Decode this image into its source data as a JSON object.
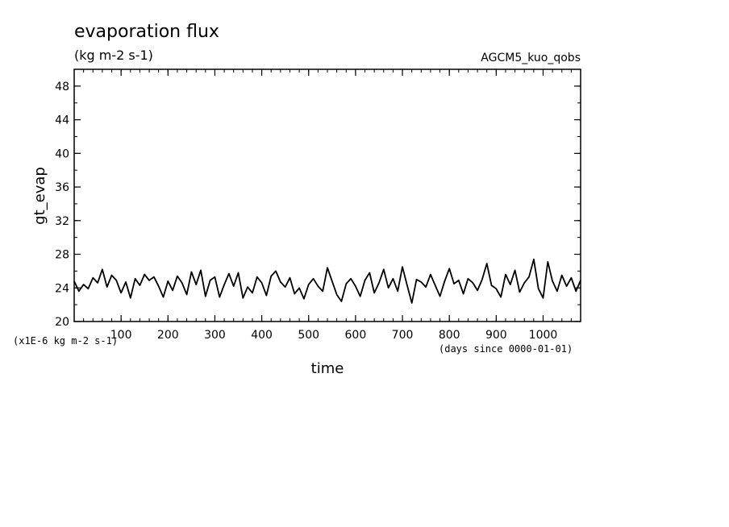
{
  "chart_data": {
    "type": "line",
    "title": "evaporation flux",
    "subtitle": "(kg m-2 s-1)",
    "dataset_label": "AGCM5_kuo_qobs",
    "xlabel": "time",
    "x_unit_note": "(days since 0000-01-01)",
    "ylabel": "gt_evap",
    "y_unit_note": "(x1E-6 kg m-2 s-1)",
    "xlim": [
      0,
      1080
    ],
    "ylim": [
      20,
      50
    ],
    "xticks": [
      100,
      200,
      300,
      400,
      500,
      600,
      700,
      800,
      900,
      1000
    ],
    "yticks": [
      20,
      24,
      28,
      32,
      36,
      40,
      44,
      48
    ],
    "grid": false,
    "line_color": "#000000",
    "series": [
      {
        "x": [
          0,
          10,
          20,
          30,
          40,
          50,
          60,
          70,
          80,
          90,
          100,
          110,
          120,
          130,
          140,
          150,
          160,
          170,
          180,
          190,
          200,
          210,
          220,
          230,
          240,
          250,
          260,
          270,
          280,
          290,
          300,
          310,
          320,
          330,
          340,
          350,
          360,
          370,
          380,
          390,
          400,
          410,
          420,
          430,
          440,
          450,
          460,
          470,
          480,
          490,
          500,
          510,
          520,
          530,
          540,
          550,
          560,
          570,
          580,
          590,
          600,
          610,
          620,
          630,
          640,
          650,
          660,
          670,
          680,
          690,
          700,
          710,
          720,
          730,
          740,
          750,
          760,
          770,
          780,
          790,
          800,
          810,
          820,
          830,
          840,
          850,
          860,
          870,
          880,
          890,
          900,
          910,
          920,
          930,
          940,
          950,
          960,
          970,
          980,
          990,
          1000,
          1010,
          1020,
          1030,
          1040,
          1050,
          1060,
          1070,
          1080
        ],
        "values": [
          24.8,
          23.6,
          24.4,
          23.9,
          25.2,
          24.6,
          26.2,
          24.1,
          25.5,
          24.9,
          23.4,
          24.7,
          22.8,
          25.1,
          24.3,
          25.6,
          24.9,
          25.3,
          24.2,
          22.9,
          24.8,
          23.7,
          25.4,
          24.6,
          23.2,
          25.9,
          24.4,
          26.1,
          23.0,
          24.9,
          25.3,
          22.9,
          24.4,
          25.7,
          24.2,
          25.8,
          22.8,
          24.1,
          23.4,
          25.3,
          24.6,
          23.1,
          25.4,
          26.0,
          24.7,
          24.1,
          25.2,
          23.3,
          24.0,
          22.7,
          24.4,
          25.1,
          24.2,
          23.6,
          26.4,
          24.8,
          23.2,
          22.4,
          24.5,
          25.1,
          24.2,
          23.0,
          24.9,
          25.8,
          23.4,
          24.6,
          26.2,
          24.0,
          25.1,
          23.6,
          26.5,
          24.3,
          22.2,
          25.0,
          24.7,
          24.1,
          25.6,
          24.3,
          23.0,
          24.8,
          26.3,
          24.5,
          24.9,
          23.3,
          25.1,
          24.6,
          23.7,
          25.0,
          26.9,
          24.3,
          23.9,
          22.9,
          25.6,
          24.4,
          26.1,
          23.5,
          24.6,
          25.3,
          27.4,
          23.9,
          22.8,
          27.1,
          24.8,
          23.6,
          25.5,
          24.2,
          25.2,
          23.6,
          24.9
        ]
      }
    ]
  }
}
